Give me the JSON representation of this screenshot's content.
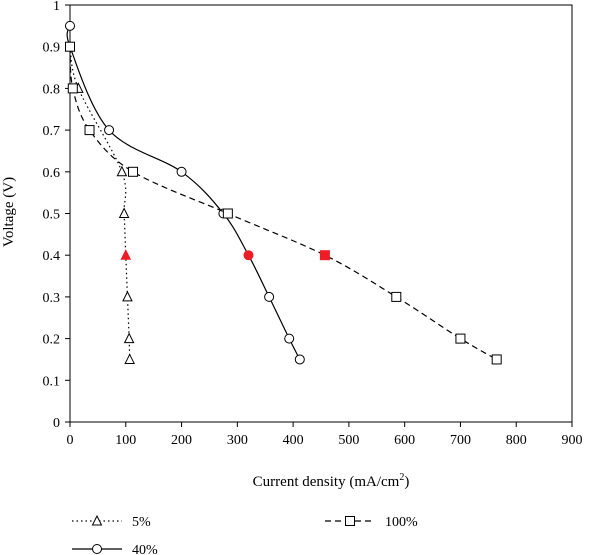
{
  "chart_data": {
    "type": "line",
    "title": "",
    "xlabel": "Current density (mA/cm",
    "xlabel_superscript": "2",
    "xlabel_close": ")",
    "ylabel": "Voltage (V)",
    "xlim": [
      0,
      900
    ],
    "ylim": [
      0,
      1
    ],
    "xticks": [
      "0",
      "100",
      "200",
      "300",
      "400",
      "500",
      "600",
      "700",
      "800",
      "900"
    ],
    "yticks": [
      "0",
      "0.1",
      "0.2",
      "0.3",
      "0.4",
      "0.5",
      "0.6",
      "0.7",
      "0.8",
      "0.9",
      "1"
    ],
    "grid": false,
    "legend_position": "bottom",
    "highlight_color": "#ee1c25",
    "series": [
      {
        "name": "5%",
        "marker": "triangle",
        "line_style": "dotted",
        "points": [
          {
            "x": 0,
            "y": 0.9
          },
          {
            "x": 15,
            "y": 0.8
          },
          {
            "x": 93,
            "y": 0.6
          },
          {
            "x": 97,
            "y": 0.5
          },
          {
            "x": 100,
            "y": 0.4,
            "highlight": true
          },
          {
            "x": 103,
            "y": 0.3
          },
          {
            "x": 106,
            "y": 0.2
          },
          {
            "x": 107,
            "y": 0.15
          }
        ]
      },
      {
        "name": "40%",
        "marker": "circle",
        "line_style": "solid",
        "points": [
          {
            "x": 0,
            "y": 0.95
          },
          {
            "x": 0,
            "y": 0.9
          },
          {
            "x": 70,
            "y": 0.7
          },
          {
            "x": 200,
            "y": 0.6
          },
          {
            "x": 275,
            "y": 0.5
          },
          {
            "x": 320,
            "y": 0.4,
            "highlight": true
          },
          {
            "x": 357,
            "y": 0.3
          },
          {
            "x": 393,
            "y": 0.2
          },
          {
            "x": 412,
            "y": 0.15
          }
        ]
      },
      {
        "name": "100%",
        "marker": "square",
        "line_style": "dashed",
        "points": [
          {
            "x": 0,
            "y": 0.9
          },
          {
            "x": 5,
            "y": 0.8
          },
          {
            "x": 35,
            "y": 0.7
          },
          {
            "x": 113,
            "y": 0.6
          },
          {
            "x": 283,
            "y": 0.5
          },
          {
            "x": 457,
            "y": 0.4,
            "highlight": true
          },
          {
            "x": 585,
            "y": 0.3
          },
          {
            "x": 700,
            "y": 0.2
          },
          {
            "x": 765,
            "y": 0.15
          }
        ]
      }
    ]
  }
}
